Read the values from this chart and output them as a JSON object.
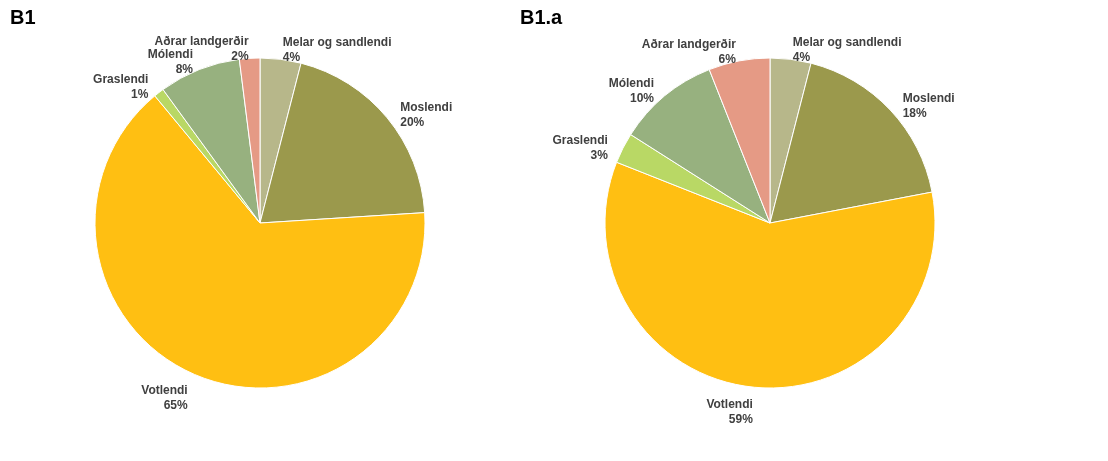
{
  "chart_data": [
    {
      "type": "pie",
      "title": "B1",
      "categories": [
        "Melar og sandlendi",
        "Moslendi",
        "Votlendi",
        "Graslendi",
        "Mólendi",
        "Aðrar landgerðir"
      ],
      "values": [
        4,
        20,
        65,
        1,
        8,
        2
      ],
      "value_labels": [
        "4%",
        "20%",
        "65%",
        "1%",
        "8%",
        "2%"
      ],
      "colors": [
        "#b7b78a",
        "#9b994c",
        "#ffbf12",
        "#b9d865",
        "#97b17f",
        "#e59a85"
      ],
      "legend": false
    },
    {
      "type": "pie",
      "title": "B1.a",
      "categories": [
        "Melar og sandlendi",
        "Moslendi",
        "Votlendi",
        "Graslendi",
        "Mólendi",
        "Aðrar landgerðir"
      ],
      "values": [
        4,
        18,
        59,
        3,
        10,
        6
      ],
      "value_labels": [
        "4%",
        "18%",
        "59%",
        "3%",
        "10%",
        "6%"
      ],
      "colors": [
        "#b7b78a",
        "#9b994c",
        "#ffbf12",
        "#b9d865",
        "#97b17f",
        "#e59a85"
      ],
      "legend": false
    }
  ]
}
